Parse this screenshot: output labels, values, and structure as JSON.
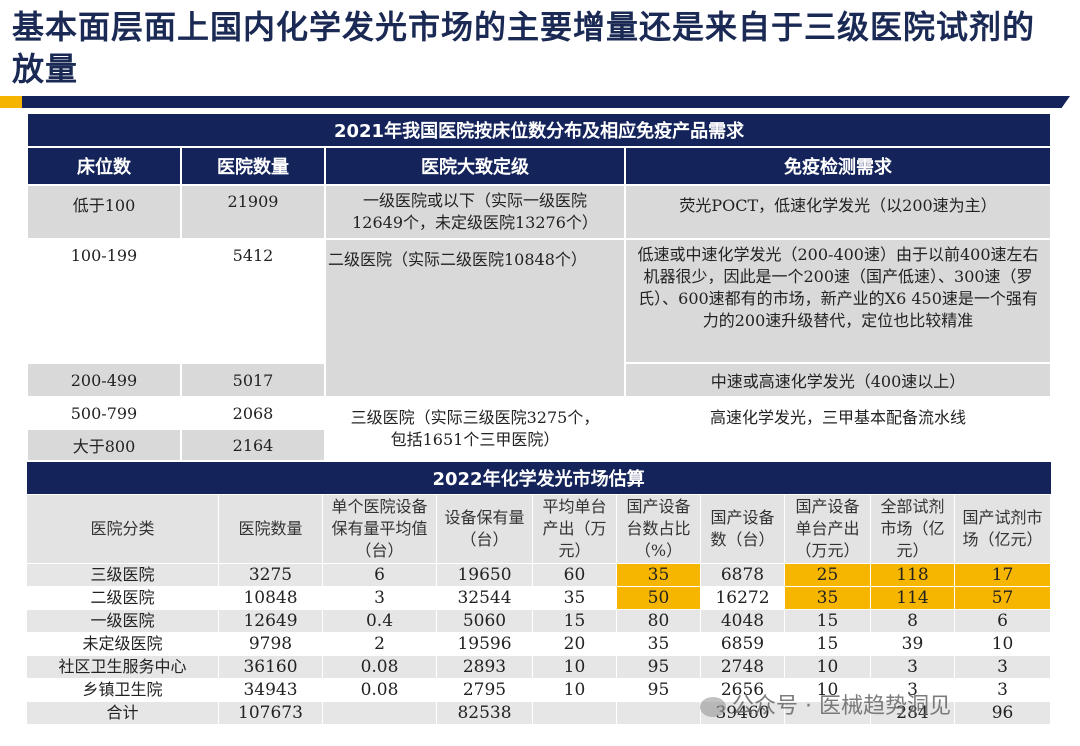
{
  "title": "基本面层面上国内化学发光市场的主要增量还是来自于三级医院试剂的放量",
  "table1": {
    "caption": "2021年我国医院按床位数分布及相应免疫产品需求",
    "headers": [
      "床位数",
      "医院数量",
      "医院大致定级",
      "免疫检测需求"
    ],
    "rows": [
      {
        "beds": "低于100",
        "count": "21909"
      },
      {
        "beds": "100-199",
        "count": "5412"
      },
      {
        "beds": "200-499",
        "count": "5017"
      },
      {
        "beds": "500-799",
        "count": "2068"
      },
      {
        "beds": "大于800",
        "count": "2164"
      }
    ],
    "grades": [
      "一级医院或以下（实际一级医院12649个，未定级医院13276个）",
      "二级医院（实际二级医院10848个）",
      "三级医院（实际三级医院3275个，包括1651个三甲医院）"
    ],
    "needs": [
      "荧光POCT，低速化学发光（以200速为主）",
      "低速或中速化学发光（200-400速）由于以前400速左右机器很少，因此是一个200速（国产低速）、300速（罗氏）、600速都有的市场，新产业的X6 450速是一个强有力的200速升级替代，定位也比较精准",
      "中速或高速化学发光（400速以上）",
      "高速化学发光，三甲基本配备流水线"
    ]
  },
  "table2": {
    "caption": "2022年化学发光市场估算",
    "headers": [
      "医院分类",
      "医院数量",
      "单个医院设备保有量平均值（台）",
      "设备保有量（台）",
      "平均单台产出（万元）",
      "国产设备台数占比（%）",
      "国产设备数（台）",
      "国产设备单台产出（万元）",
      "全部试剂市场（亿元）",
      "国产试剂市场（亿元）"
    ],
    "rows": [
      [
        "三级医院",
        "3275",
        "6",
        "19650",
        "60",
        "35",
        "6878",
        "25",
        "118",
        "17"
      ],
      [
        "二级医院",
        "10848",
        "3",
        "32544",
        "35",
        "50",
        "16272",
        "35",
        "114",
        "57"
      ],
      [
        "一级医院",
        "12649",
        "0.4",
        "5060",
        "15",
        "80",
        "4048",
        "15",
        "8",
        "6"
      ],
      [
        "未定级医院",
        "9798",
        "2",
        "19596",
        "20",
        "35",
        "6859",
        "15",
        "39",
        "10"
      ],
      [
        "社区卫生服务中心",
        "36160",
        "0.08",
        "2893",
        "10",
        "95",
        "2748",
        "10",
        "3",
        "3"
      ],
      [
        "乡镇卫生院",
        "34943",
        "0.08",
        "2795",
        "10",
        "95",
        "2656",
        "10",
        "3",
        "3"
      ],
      [
        "合计",
        "107673",
        "",
        "82538",
        "",
        "",
        "39460",
        "",
        "284",
        "96"
      ]
    ],
    "highlight_color": "#f6b600"
  },
  "watermark": "公众号 · 医械趋势洞见",
  "colors": {
    "navy": "#14245a",
    "gold": "#f4b400",
    "gray": "#d9d9d9"
  }
}
